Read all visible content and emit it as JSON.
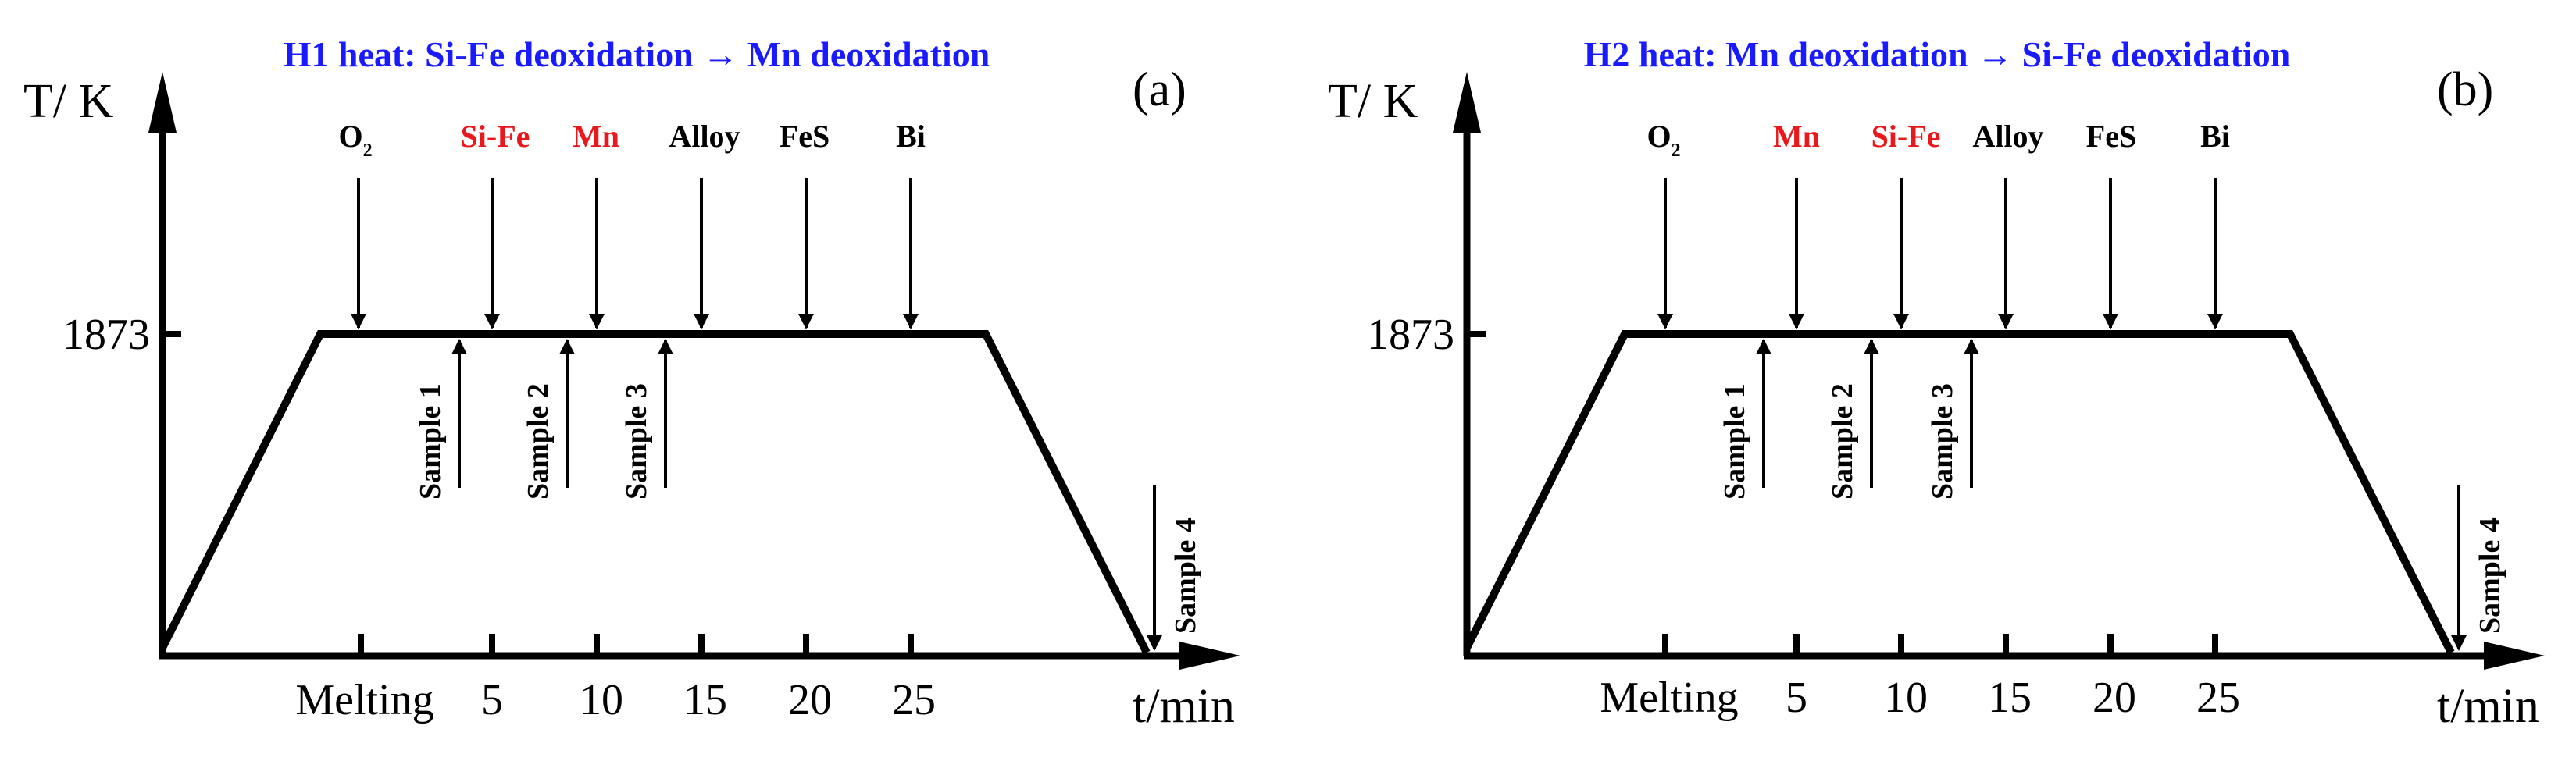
{
  "panels": [
    {
      "id": "a",
      "title": "H1 heat: Si-Fe deoxidation → Mn deoxidation",
      "panel_label": "(a)",
      "y_axis_label": "T/ K",
      "x_axis_label": "t/min",
      "y_tick": "1873",
      "x_ticks": [
        "Melting",
        "5",
        "10",
        "15",
        "20",
        "25"
      ],
      "additions": [
        {
          "label": "O",
          "sub": "2",
          "color": "#000000"
        },
        {
          "label": "Si-Fe",
          "sub": "",
          "color": "#e8181c"
        },
        {
          "label": "Mn",
          "sub": "",
          "color": "#e8181c"
        },
        {
          "label": "Alloy",
          "sub": "",
          "color": "#000000"
        },
        {
          "label": "FeS",
          "sub": "",
          "color": "#000000"
        },
        {
          "label": "Bi",
          "sub": "",
          "color": "#000000"
        }
      ],
      "samples": [
        "Sample 1",
        "Sample 2",
        "Sample 3",
        "Sample 4"
      ]
    },
    {
      "id": "b",
      "title": "H2 heat: Mn deoxidation → Si-Fe deoxidation",
      "panel_label": "(b)",
      "y_axis_label": "T/ K",
      "x_axis_label": "t/min",
      "y_tick": "1873",
      "x_ticks": [
        "Melting",
        "5",
        "10",
        "15",
        "20",
        "25"
      ],
      "additions": [
        {
          "label": "O",
          "sub": "2",
          "color": "#000000"
        },
        {
          "label": "Mn",
          "sub": "",
          "color": "#e8181c"
        },
        {
          "label": "Si-Fe",
          "sub": "",
          "color": "#e8181c"
        },
        {
          "label": "Alloy",
          "sub": "",
          "color": "#000000"
        },
        {
          "label": "FeS",
          "sub": "",
          "color": "#000000"
        },
        {
          "label": "Bi",
          "sub": "",
          "color": "#000000"
        }
      ],
      "samples": [
        "Sample 1",
        "Sample 2",
        "Sample 3",
        "Sample 4"
      ]
    }
  ]
}
